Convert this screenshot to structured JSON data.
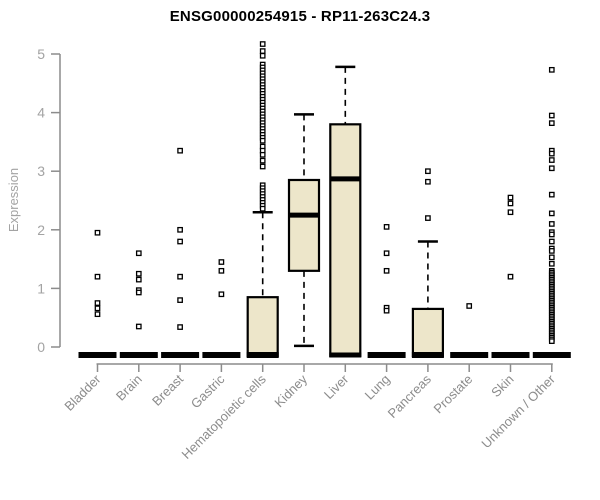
{
  "chart_data": {
    "type": "boxplot",
    "title": "ENSG00000254915 - RP11-263C24.3",
    "ylabel": "Expression",
    "ylim": [
      0,
      5.2
    ],
    "yticks": [
      0,
      1,
      2,
      3,
      4,
      5
    ],
    "grid": false,
    "legend": "none",
    "categories": [
      "Bladder",
      "Brain",
      "Breast",
      "Gastric",
      "Hematopoietic cells",
      "Kidney",
      "Liver",
      "Lung",
      "Pancreas",
      "Prostate",
      "Skin",
      "Unknown / Other"
    ],
    "boxes": [
      {
        "category": "Bladder",
        "q1": 0,
        "median": 0,
        "q3": 0,
        "whisker_low": 0,
        "whisker_high": 0,
        "outliers": [
          1.95,
          1.2,
          0.75,
          0.66,
          0.56
        ]
      },
      {
        "category": "Brain",
        "q1": 0,
        "median": 0,
        "q3": 0,
        "whisker_low": 0,
        "whisker_high": 0,
        "outliers": [
          1.6,
          1.25,
          1.15,
          0.97,
          0.93,
          0.35
        ]
      },
      {
        "category": "Breast",
        "q1": 0,
        "median": 0,
        "q3": 0,
        "whisker_low": 0,
        "whisker_high": 0,
        "outliers": [
          3.35,
          2.0,
          1.8,
          1.2,
          0.8,
          0.34
        ]
      },
      {
        "category": "Gastric",
        "q1": 0,
        "median": 0,
        "q3": 0,
        "whisker_low": 0,
        "whisker_high": 0,
        "outliers": [
          1.45,
          1.3,
          0.9
        ]
      },
      {
        "category": "Hematopoietic cells",
        "q1": 0,
        "median": 0,
        "q3": 0.85,
        "whisker_low": 0,
        "whisker_high": 2.3,
        "outliers": [
          5.17,
          5.05,
          4.97,
          4.82,
          4.77,
          4.72,
          4.67,
          4.62,
          4.57,
          4.52,
          4.47,
          4.42,
          4.37,
          4.32,
          4.27,
          4.22,
          4.17,
          4.12,
          4.07,
          4.02,
          3.97,
          3.92,
          3.87,
          3.82,
          3.77,
          3.72,
          3.67,
          3.62,
          3.57,
          3.52,
          3.42,
          3.35,
          3.28,
          3.18,
          3.08,
          2.76,
          2.71,
          2.66,
          2.61,
          2.56,
          2.51,
          2.46,
          2.41,
          2.36
        ]
      },
      {
        "category": "Kidney",
        "q1": 1.3,
        "median": 2.25,
        "q3": 2.85,
        "whisker_low": 0.02,
        "whisker_high": 3.97,
        "outliers": []
      },
      {
        "category": "Liver",
        "q1": 0,
        "median": 2.87,
        "q3": 3.8,
        "whisker_low": 0,
        "whisker_high": 4.78,
        "outliers": []
      },
      {
        "category": "Lung",
        "q1": 0,
        "median": 0,
        "q3": 0,
        "whisker_low": 0,
        "whisker_high": 0,
        "outliers": [
          2.05,
          1.6,
          1.3,
          0.67,
          0.62
        ]
      },
      {
        "category": "Pancreas",
        "q1": 0,
        "median": 0,
        "q3": 0.65,
        "whisker_low": 0,
        "whisker_high": 1.8,
        "outliers": [
          3.0,
          2.82,
          2.2
        ]
      },
      {
        "category": "Prostate",
        "q1": 0,
        "median": 0,
        "q3": 0,
        "whisker_low": 0,
        "whisker_high": 0,
        "outliers": [
          0.7
        ]
      },
      {
        "category": "Skin",
        "q1": 0,
        "median": 0,
        "q3": 0,
        "whisker_low": 0,
        "whisker_high": 0,
        "outliers": [
          2.55,
          2.45,
          2.3,
          1.2
        ]
      },
      {
        "category": "Unknown / Other",
        "q1": 0,
        "median": 0,
        "q3": 0,
        "whisker_low": 0,
        "whisker_high": 0,
        "outliers": [
          4.73,
          3.95,
          3.82,
          3.35,
          3.3,
          3.19,
          3.05,
          2.6,
          2.28,
          2.1,
          1.96,
          1.92,
          1.8,
          1.68,
          1.64,
          1.53,
          1.42,
          1.3,
          1.27,
          1.24,
          1.21,
          1.18,
          1.15,
          1.12,
          1.09,
          1.06,
          1.03,
          1.0,
          0.97,
          0.94,
          0.91,
          0.88,
          0.85,
          0.82,
          0.79,
          0.76,
          0.73,
          0.7,
          0.67,
          0.64,
          0.61,
          0.58,
          0.55,
          0.52,
          0.49,
          0.46,
          0.43,
          0.4,
          0.37,
          0.34,
          0.31,
          0.28,
          0.25,
          0.22,
          0.19,
          0.16,
          0.13,
          0.1
        ]
      }
    ],
    "colors": {
      "box_fill": "#EDE6CA",
      "box_stroke": "#000000",
      "median": "#000000",
      "whisker": "#000000",
      "outlier_stroke": "#000000",
      "outlier_fill": "#FFFFFF",
      "axis": "#8C8C8C",
      "y_tick_label": "#A3A3A3",
      "x_label": "#8C8C8C",
      "title": "#000000"
    }
  }
}
